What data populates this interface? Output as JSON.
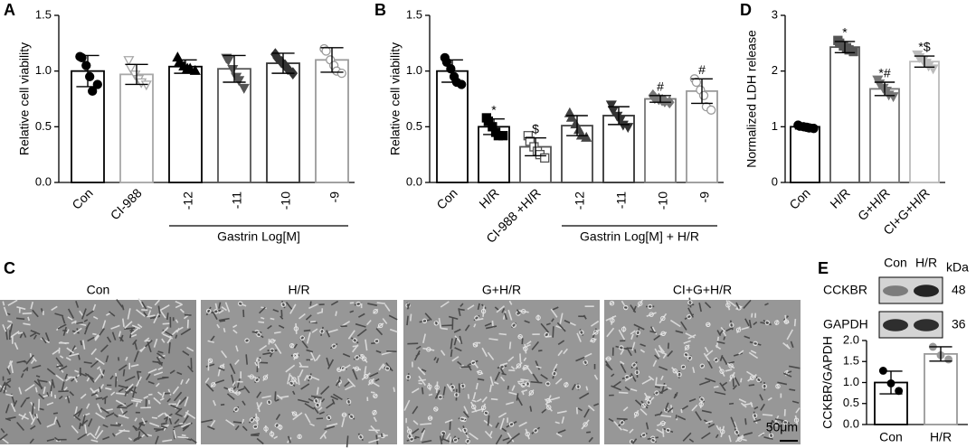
{
  "chart_data": [
    {
      "type": "bar",
      "panel": "A",
      "ylabel": "Relative cell viability",
      "group_label": "Gastrin Log[M]",
      "categories": [
        "Con",
        "CI-988",
        "-12",
        "-11",
        "-10",
        "-9"
      ],
      "values": [
        1.0,
        0.97,
        1.04,
        1.02,
        1.07,
        1.1
      ],
      "errors": [
        0.14,
        0.09,
        0.06,
        0.12,
        0.09,
        0.11
      ],
      "points": [
        [
          1.13,
          1.12,
          1.05,
          0.95,
          0.82,
          0.88
        ],
        [
          1.1,
          1.03,
          0.97,
          0.93,
          0.9,
          0.88
        ],
        [
          1.12,
          1.08,
          1.04,
          1.02,
          1.02,
          1.0
        ],
        [
          1.12,
          1.1,
          1.02,
          0.95,
          0.92,
          0.85
        ],
        [
          1.15,
          1.12,
          1.08,
          1.05,
          1.02,
          0.98
        ],
        [
          1.2,
          1.18,
          1.1,
          1.05,
          1.0,
          0.98
        ]
      ],
      "colors": [
        "#000000",
        "#a8a8a8",
        "#000000",
        "#555555",
        "#333333",
        "#9a9a9a"
      ],
      "point_shapes": [
        "circle",
        "triangle-down",
        "triangle-up",
        "triangle-down",
        "diamond",
        "circle"
      ],
      "point_filled": [
        true,
        false,
        true,
        true,
        true,
        false
      ],
      "ylim": [
        0,
        1.5
      ],
      "yticks": [
        {
          "value": 0,
          "label": "0.0"
        },
        {
          "value": 0.5,
          "label": "0.5"
        },
        {
          "value": 1,
          "label": "1.0"
        },
        {
          "value": 1.5,
          "label": "1.5"
        }
      ]
    },
    {
      "type": "bar",
      "panel": "B",
      "ylabel": "Relative cell viability",
      "group_label": "Gastrin Log[M] + H/R",
      "categories": [
        "Con",
        "H/R",
        "CI-988 +H/R",
        "-12",
        "-11",
        "-10",
        "-9"
      ],
      "values": [
        1.0,
        0.5,
        0.32,
        0.51,
        0.6,
        0.75,
        0.82
      ],
      "errors": [
        0.1,
        0.07,
        0.08,
        0.09,
        0.08,
        0.03,
        0.11
      ],
      "markers": [
        null,
        "*",
        "$",
        null,
        null,
        "#",
        "#"
      ],
      "points": [
        [
          1.12,
          1.08,
          1.02,
          0.95,
          0.9,
          0.88
        ],
        [
          0.58,
          0.55,
          0.5,
          0.45,
          0.42,
          0.42
        ],
        [
          0.42,
          0.37,
          0.32,
          0.28,
          0.25,
          0.22
        ],
        [
          0.62,
          0.58,
          0.52,
          0.47,
          0.42,
          0.4
        ],
        [
          0.7,
          0.65,
          0.6,
          0.57,
          0.52,
          0.5
        ],
        [
          0.78,
          0.76,
          0.75,
          0.74,
          0.73,
          0.72
        ],
        [
          0.93,
          0.9,
          0.83,
          0.78,
          0.68,
          0.65
        ]
      ],
      "colors": [
        "#000000",
        "#000000",
        "#555555",
        "#444444",
        "#333333",
        "#777777",
        "#9a9a9a"
      ],
      "point_shapes": [
        "circle",
        "square",
        "square",
        "triangle-up",
        "triangle-down",
        "diamond",
        "circle"
      ],
      "point_filled": [
        true,
        true,
        false,
        true,
        true,
        true,
        false
      ],
      "ylim": [
        0,
        1.5
      ],
      "yticks": [
        {
          "value": 0,
          "label": "0.0"
        },
        {
          "value": 0.5,
          "label": "0.5"
        },
        {
          "value": 1,
          "label": "1.0"
        },
        {
          "value": 1.5,
          "label": "1.5"
        }
      ]
    },
    {
      "type": "bar",
      "panel": "D",
      "ylabel": "Normalized LDH release",
      "categories": [
        "Con",
        "H/R",
        "G+H/R",
        "CI+G+H/R"
      ],
      "values": [
        1.0,
        2.43,
        1.68,
        2.17
      ],
      "errors": [
        0.04,
        0.1,
        0.12,
        0.1
      ],
      "markers": [
        null,
        "*",
        "*#",
        "*$"
      ],
      "points": [
        [
          1.03,
          1.01,
          1.0,
          0.99,
          0.98,
          0.97
        ],
        [
          2.55,
          2.5,
          2.45,
          2.42,
          2.38,
          2.35
        ],
        [
          1.85,
          1.78,
          1.7,
          1.65,
          1.58,
          1.55
        ],
        [
          2.3,
          2.25,
          2.2,
          2.15,
          2.1,
          2.05
        ]
      ],
      "colors": [
        "#000000",
        "#555555",
        "#777777",
        "#bbbbbb"
      ],
      "point_shapes": [
        "circle",
        "square",
        "triangle-down",
        "triangle-down"
      ],
      "point_filled": [
        true,
        true,
        true,
        true
      ],
      "ylim": [
        0,
        3
      ],
      "yticks": [
        0,
        1,
        2,
        3
      ]
    },
    {
      "type": "bar",
      "panel": "E",
      "ylabel": "CCKBR/GAPDH",
      "categories": [
        "Con",
        "H/R"
      ],
      "values": [
        1.0,
        1.68
      ],
      "errors": [
        0.27,
        0.17
      ],
      "markers": [
        null,
        "*"
      ],
      "points": [
        [
          1.28,
          0.98,
          0.8
        ],
        [
          1.85,
          1.65,
          1.55
        ]
      ],
      "colors": [
        "#000000",
        "#999999"
      ],
      "point_shapes": [
        "circle",
        "circle"
      ],
      "point_filled": [
        true,
        true
      ],
      "ylim": [
        0,
        2
      ],
      "yticks": [
        {
          "value": 0,
          "label": "0.0"
        },
        {
          "value": 0.5,
          "label": "0.5"
        },
        {
          "value": 1,
          "label": "1.0"
        },
        {
          "value": 1.5,
          "label": "1.5"
        },
        {
          "value": 2,
          "label": "2.0"
        }
      ]
    }
  ],
  "micrographs": {
    "panel": "C",
    "labels": [
      "Con",
      "H/R",
      "G+H/R",
      "CI+G+H/R"
    ],
    "scale_bar": "50μm"
  },
  "blot": {
    "lanes": [
      "Con",
      "H/R"
    ],
    "unit": "kDa",
    "rows": [
      {
        "name": "CCKBR",
        "size": "48"
      },
      {
        "name": "GAPDH",
        "size": "36"
      }
    ]
  }
}
